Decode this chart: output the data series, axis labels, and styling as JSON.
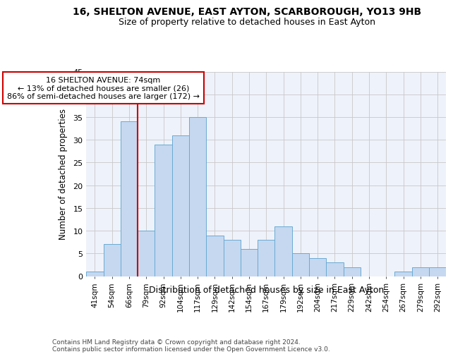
{
  "title1": "16, SHELTON AVENUE, EAST AYTON, SCARBOROUGH, YO13 9HB",
  "title2": "Size of property relative to detached houses in East Ayton",
  "xlabel": "Distribution of detached houses by size in East Ayton",
  "ylabel": "Number of detached properties",
  "bin_labels": [
    "41sqm",
    "54sqm",
    "66sqm",
    "79sqm",
    "92sqm",
    "104sqm",
    "117sqm",
    "129sqm",
    "142sqm",
    "154sqm",
    "167sqm",
    "179sqm",
    "192sqm",
    "204sqm",
    "217sqm",
    "229sqm",
    "242sqm",
    "254sqm",
    "267sqm",
    "279sqm",
    "292sqm"
  ],
  "bar_heights": [
    1,
    7,
    34,
    10,
    29,
    31,
    35,
    9,
    8,
    6,
    8,
    11,
    5,
    4,
    3,
    2,
    0,
    0,
    1,
    2,
    2
  ],
  "bar_color": "#c5d8f0",
  "bar_edge_color": "#6aaad4",
  "vline_color": "#cc0000",
  "annotation_text": "16 SHELTON AVENUE: 74sqm\n← 13% of detached houses are smaller (26)\n86% of semi-detached houses are larger (172) →",
  "annotation_box_color": "#ffffff",
  "annotation_box_edge": "#cc0000",
  "ylim": [
    0,
    45
  ],
  "yticks": [
    0,
    5,
    10,
    15,
    20,
    25,
    30,
    35,
    40,
    45
  ],
  "footer": "Contains HM Land Registry data © Crown copyright and database right 2024.\nContains public sector information licensed under the Open Government Licence v3.0.",
  "bg_color": "#eef2fa",
  "grid_color": "#c8c8c8"
}
